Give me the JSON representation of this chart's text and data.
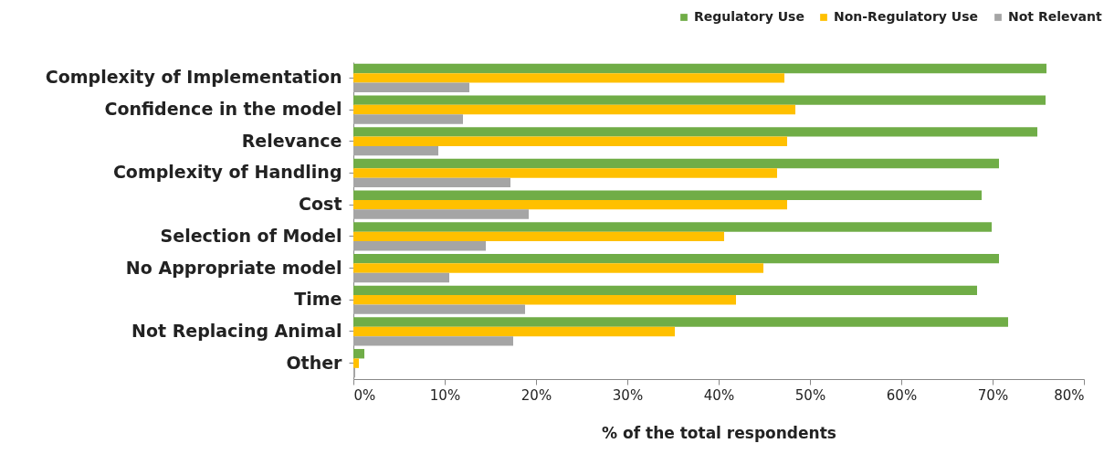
{
  "chart_data": {
    "type": "bar",
    "orientation": "horizontal",
    "xlabel": "% of the total respondents",
    "categories": [
      "Complexity of Implementation",
      "Confidence in the model",
      "Relevance",
      "Complexity of Handling",
      "Cost",
      "Selection of Model",
      "No Appropriate model",
      "Time",
      "Not Replacing Animal",
      "Other"
    ],
    "series": [
      {
        "name": "Regulatory Use",
        "color": "#70ad47",
        "values": [
          75.9,
          75.8,
          74.9,
          70.7,
          68.8,
          69.9,
          70.7,
          68.3,
          71.7,
          1.2
        ]
      },
      {
        "name": "Non-Regulatory Use",
        "color": "#ffc000",
        "values": [
          47.2,
          48.4,
          47.5,
          46.4,
          47.5,
          40.6,
          44.9,
          41.9,
          35.2,
          0.6
        ]
      },
      {
        "name": "Not Relevant",
        "color": "#a5a5a5",
        "values": [
          12.7,
          12.0,
          9.3,
          17.2,
          19.2,
          14.5,
          10.5,
          18.8,
          17.5,
          0.2
        ]
      }
    ],
    "xlim": [
      0,
      80
    ],
    "xticks": [
      {
        "value": 0,
        "label": "0%"
      },
      {
        "value": 10,
        "label": "10%"
      },
      {
        "value": 20,
        "label": "20%"
      },
      {
        "value": 30,
        "label": "30%"
      },
      {
        "value": 40,
        "label": "40%"
      },
      {
        "value": 50,
        "label": "50%"
      },
      {
        "value": 60,
        "label": "60%"
      },
      {
        "value": 70,
        "label": "70%"
      },
      {
        "value": 80,
        "label": "80%"
      }
    ],
    "grid": false,
    "legend": "top right"
  }
}
